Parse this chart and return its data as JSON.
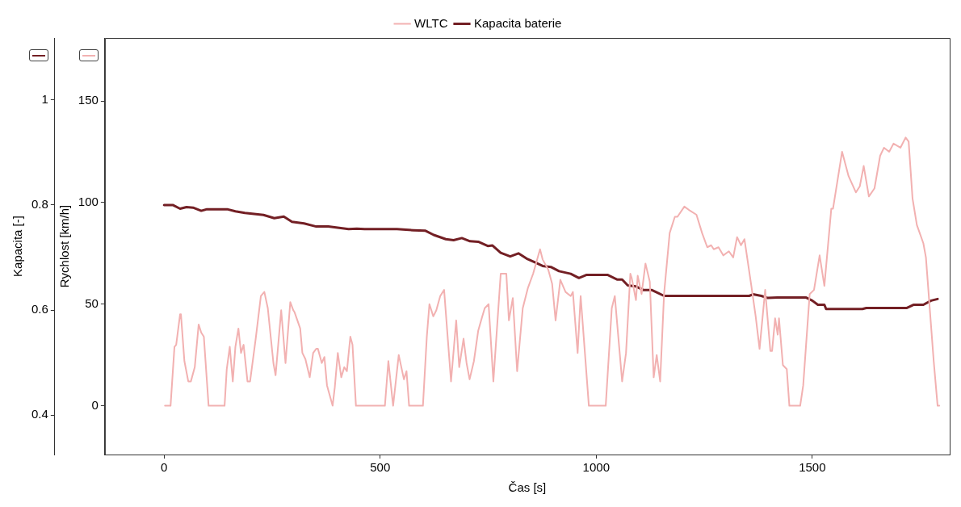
{
  "chart_data": {
    "type": "line",
    "xlabel": "Čas [s]",
    "ylabel": "Rychlost [km/h]",
    "y2label": "Kapacita [-]",
    "xlim": [
      -137,
      1818
    ],
    "xticks": [
      0,
      500,
      1000,
      1500
    ],
    "ylim": [
      -24,
      181
    ],
    "yticks": [
      0,
      50,
      100,
      150
    ],
    "y2lim": [
      0.325,
      1.118
    ],
    "y2ticks": [
      0.4,
      0.6,
      0.8,
      1
    ],
    "grid": false,
    "legend": "top",
    "marker": "none",
    "line_style": "solid",
    "series": [
      {
        "name": "WLTC",
        "color": "#f2b1b1",
        "x": [
          2,
          15,
          24,
          28,
          37,
          39,
          47,
          56,
          62,
          71,
          80,
          86,
          92,
          103,
          140,
          145,
          152,
          159,
          165,
          172,
          178,
          184,
          193,
          199,
          212,
          224,
          232,
          240,
          253,
          258,
          271,
          281,
          292,
          299,
          302,
          315,
          320,
          327,
          337,
          345,
          352,
          356,
          365,
          371,
          377,
          390,
          395,
          402,
          410,
          417,
          423,
          431,
          436,
          444,
          511,
          519,
          530,
          543,
          555,
          561,
          567,
          599,
          608,
          614,
          623,
          630,
          639,
          648,
          664,
          676,
          683,
          693,
          700,
          707,
          717,
          727,
          735,
          742,
          751,
          762,
          779,
          792,
          798,
          807,
          817,
          830,
          842,
          854,
          870,
          876,
          889,
          898,
          906,
          917,
          929,
          941,
          946,
          957,
          964,
          983,
          1022,
          1036,
          1043,
          1060,
          1069,
          1079,
          1082,
          1092,
          1096,
          1105,
          1114,
          1124,
          1133,
          1140,
          1148,
          1157,
          1170,
          1182,
          1188,
          1204,
          1217,
          1232,
          1245,
          1257,
          1266,
          1272,
          1283,
          1294,
          1307,
          1317,
          1326,
          1335,
          1343,
          1359,
          1369,
          1378,
          1391,
          1403,
          1407,
          1414,
          1420,
          1423,
          1432,
          1441,
          1447,
          1472,
          1479,
          1494,
          1504,
          1517,
          1528,
          1544,
          1548,
          1569,
          1584,
          1601,
          1610,
          1619,
          1631,
          1644,
          1657,
          1666,
          1678,
          1688,
          1704,
          1716,
          1723,
          1732,
          1742,
          1757,
          1763,
          1781,
          1790,
          1794
        ],
        "values": [
          0,
          0,
          29,
          30,
          45,
          45,
          22,
          12,
          12,
          19,
          40,
          36,
          34,
          0,
          0,
          18,
          29,
          12,
          29,
          38,
          26,
          30,
          12,
          12,
          33,
          54,
          56,
          48,
          21,
          15,
          47,
          21,
          51,
          47,
          46,
          38,
          26,
          23,
          14,
          26,
          28,
          28,
          21,
          24,
          10,
          0,
          9,
          26,
          14,
          19,
          17,
          34,
          30,
          0,
          0,
          22,
          0,
          25,
          13,
          17,
          0,
          0,
          34,
          50,
          44,
          47,
          54,
          57,
          12,
          42,
          19,
          33,
          21,
          13,
          22,
          37,
          43,
          48,
          50,
          12,
          65,
          65,
          42,
          53,
          17,
          48,
          58,
          65,
          77,
          72,
          67,
          60,
          42,
          62,
          56,
          54,
          56,
          26,
          54,
          0,
          0,
          48,
          54,
          12,
          26,
          65,
          63,
          52,
          64,
          55,
          70,
          61,
          14,
          25,
          12,
          55,
          85,
          93,
          93,
          98,
          96,
          94,
          85,
          78,
          79,
          77,
          78,
          74,
          76,
          73,
          83,
          79,
          82,
          59,
          44,
          28,
          57,
          27,
          27,
          43,
          35,
          43,
          20,
          18,
          0,
          0,
          10,
          55,
          57,
          74,
          59,
          97,
          97,
          125,
          113,
          105,
          108,
          118,
          103,
          107,
          123,
          127,
          125,
          129,
          127,
          132,
          130,
          102,
          89,
          80,
          73,
          22,
          0,
          0
        ]
      },
      {
        "name": "Kapacita baterie",
        "color": "#731f24",
        "axis": "y2",
        "x": [
          0,
          20,
          37,
          52,
          67,
          86,
          99,
          146,
          165,
          187,
          230,
          255,
          277,
          296,
          324,
          352,
          380,
          427,
          446,
          464,
          502,
          539,
          577,
          605,
          624,
          652,
          670,
          689,
          708,
          727,
          749,
          760,
          779,
          801,
          820,
          839,
          858,
          876,
          895,
          914,
          941,
          960,
          978,
          1026,
          1049,
          1060,
          1073,
          1092,
          1110,
          1129,
          1139,
          1157,
          1354,
          1363,
          1382,
          1397,
          1419,
          1485,
          1500,
          1513,
          1528,
          1532,
          1616,
          1625,
          1719,
          1734,
          1757,
          1775,
          1790
        ],
        "values": [
          0.8,
          0.8,
          0.793,
          0.796,
          0.795,
          0.789,
          0.792,
          0.792,
          0.788,
          0.785,
          0.781,
          0.775,
          0.778,
          0.768,
          0.765,
          0.759,
          0.759,
          0.754,
          0.755,
          0.754,
          0.754,
          0.754,
          0.752,
          0.751,
          0.743,
          0.735,
          0.733,
          0.737,
          0.731,
          0.73,
          0.722,
          0.723,
          0.709,
          0.702,
          0.708,
          0.698,
          0.691,
          0.684,
          0.682,
          0.674,
          0.669,
          0.661,
          0.667,
          0.667,
          0.658,
          0.658,
          0.647,
          0.645,
          0.638,
          0.638,
          0.634,
          0.627,
          0.627,
          0.63,
          0.627,
          0.623,
          0.624,
          0.624,
          0.618,
          0.61,
          0.61,
          0.602,
          0.602,
          0.604,
          0.604,
          0.61,
          0.61,
          0.618,
          0.621
        ]
      }
    ]
  }
}
